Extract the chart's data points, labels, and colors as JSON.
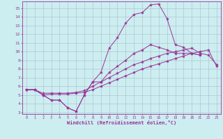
{
  "bg_color": "#cceef0",
  "line_color": "#993399",
  "grid_color": "#aabbcc",
  "xlim": [
    -0.5,
    23.5
  ],
  "ylim": [
    2.8,
    15.8
  ],
  "xticks": [
    0,
    1,
    2,
    3,
    4,
    5,
    6,
    7,
    8,
    9,
    10,
    11,
    12,
    13,
    14,
    15,
    16,
    17,
    18,
    19,
    20,
    21,
    22,
    23
  ],
  "yticks": [
    3,
    4,
    5,
    6,
    7,
    8,
    9,
    10,
    11,
    12,
    13,
    14,
    15
  ],
  "xlabel": "Windchill (Refroidissement éolien,°C)",
  "series": [
    {
      "x": [
        0,
        1,
        2,
        3,
        4,
        5,
        6,
        7,
        8,
        9,
        10,
        11,
        12,
        13,
        14,
        15,
        16,
        17,
        18,
        19,
        20,
        21
      ],
      "y": [
        5.6,
        5.6,
        5.0,
        4.4,
        4.4,
        3.5,
        3.1,
        5.0,
        6.5,
        6.5,
        7.6,
        8.3,
        9.0,
        9.8,
        10.2,
        10.8,
        10.5,
        10.2,
        9.8,
        9.8,
        9.8,
        9.6
      ]
    },
    {
      "x": [
        0,
        1,
        2,
        3,
        4,
        5,
        6,
        7,
        8,
        9,
        10,
        11,
        12,
        13,
        14,
        15,
        16,
        17,
        18,
        19,
        20,
        21,
        22,
        23
      ],
      "y": [
        5.6,
        5.6,
        5.2,
        5.2,
        5.2,
        5.2,
        5.3,
        5.5,
        6.0,
        6.5,
        7.0,
        7.5,
        8.0,
        8.5,
        8.8,
        9.2,
        9.5,
        9.8,
        10.0,
        10.2,
        10.4,
        9.8,
        9.6,
        8.5
      ]
    },
    {
      "x": [
        0,
        1,
        2,
        3,
        4,
        5,
        6,
        7,
        8,
        9,
        10,
        11,
        12,
        13,
        14,
        15,
        16,
        17,
        18,
        19,
        20,
        21,
        22,
        23
      ],
      "y": [
        5.6,
        5.6,
        5.0,
        5.1,
        5.1,
        5.1,
        5.2,
        5.3,
        5.6,
        6.0,
        6.4,
        6.8,
        7.2,
        7.6,
        8.0,
        8.3,
        8.6,
        8.9,
        9.2,
        9.5,
        9.8,
        10.0,
        10.2,
        8.3
      ]
    },
    {
      "x": [
        0,
        1,
        2,
        3,
        4,
        5,
        6,
        7,
        8,
        9,
        10,
        11,
        12,
        13,
        14,
        15,
        16,
        17,
        18,
        19,
        20,
        21
      ],
      "y": [
        5.6,
        5.6,
        5.0,
        4.4,
        4.4,
        3.5,
        3.1,
        5.0,
        6.5,
        7.6,
        10.4,
        11.6,
        13.3,
        14.3,
        14.5,
        15.4,
        15.5,
        13.8,
        10.8,
        10.5,
        9.8,
        9.6
      ]
    }
  ]
}
